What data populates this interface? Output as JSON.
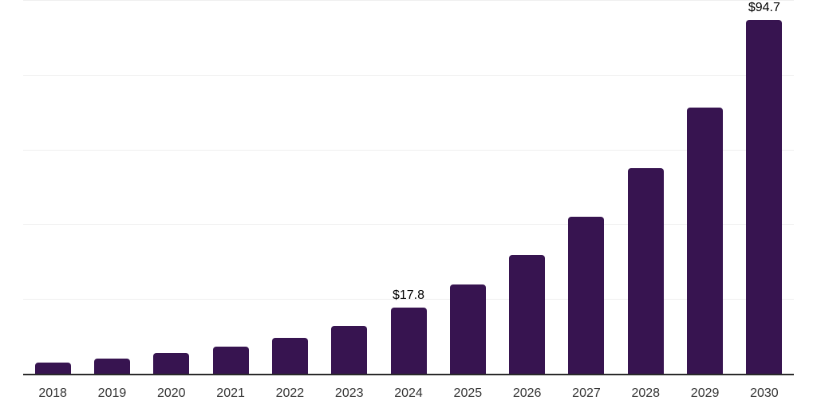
{
  "chart_data": {
    "type": "bar",
    "title": "",
    "xlabel": "",
    "ylabel": "",
    "categories": [
      "2018",
      "2019",
      "2020",
      "2021",
      "2022",
      "2023",
      "2024",
      "2025",
      "2026",
      "2027",
      "2028",
      "2029",
      "2030"
    ],
    "values": [
      3.1,
      4.1,
      5.5,
      7.3,
      9.6,
      12.9,
      17.8,
      23.9,
      31.8,
      42.1,
      55.1,
      71.3,
      94.7
    ],
    "data_labels": [
      {
        "index": 6,
        "text": "$17.8"
      },
      {
        "index": 12,
        "text": "$94.7"
      }
    ],
    "ylim": [
      0,
      100
    ],
    "gridline_values": [
      20,
      40,
      60,
      80,
      100
    ],
    "grid": "horizontal",
    "legend": "none",
    "colors": {
      "bar": "#371450",
      "axis_line": "#2a2a2a",
      "gridline": "#efefef",
      "tick_label": "#333333",
      "data_label": "#000000"
    }
  }
}
